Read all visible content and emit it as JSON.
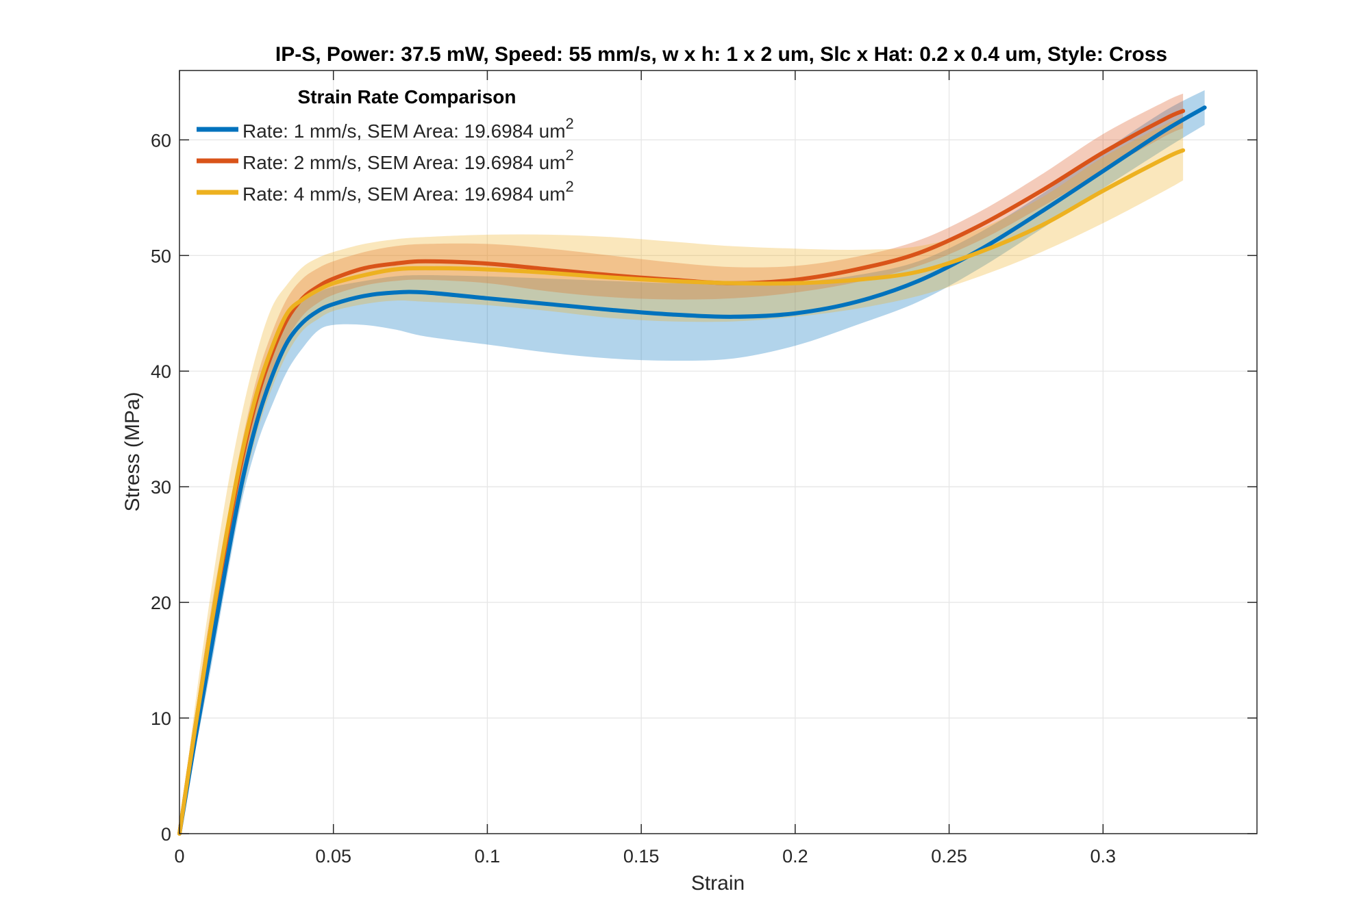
{
  "chart_data": {
    "type": "line",
    "title": "IP-S, Power: 37.5 mW, Speed: 55 mm/s, w x h: 1 x 2 um, Slc x Hat: 0.2 x 0.4 um, Style: Cross",
    "xlabel": "Strain",
    "ylabel": "Stress (MPa)",
    "xlim": [
      0,
      0.35
    ],
    "ylim": [
      0,
      66
    ],
    "xticks": [
      "0",
      "0.05",
      "0.1",
      "0.15",
      "0.2",
      "0.25",
      "0.3"
    ],
    "xtick_values": [
      0,
      0.05,
      0.1,
      0.15,
      0.2,
      0.25,
      0.3
    ],
    "yticks": [
      "0",
      "10",
      "20",
      "30",
      "40",
      "50",
      "60"
    ],
    "ytick_values": [
      0,
      10,
      20,
      30,
      40,
      50,
      60
    ],
    "grid": true,
    "legend_title": "Strain Rate Comparison",
    "legend_position": "top-left",
    "series": [
      {
        "name": "Rate: 1 mm/s, SEM Area: 19.6984 um",
        "name_sup": "2",
        "color": "#0072BD",
        "x": [
          0,
          0.005,
          0.01,
          0.015,
          0.02,
          0.025,
          0.03,
          0.035,
          0.04,
          0.045,
          0.05,
          0.06,
          0.07,
          0.08,
          0.1,
          0.12,
          0.14,
          0.16,
          0.18,
          0.2,
          0.22,
          0.24,
          0.26,
          0.28,
          0.3,
          0.32,
          0.333
        ],
        "y": [
          0,
          8.0,
          15.5,
          23.0,
          30.0,
          35.5,
          39.5,
          42.5,
          44.2,
          45.2,
          45.8,
          46.5,
          46.8,
          46.8,
          46.3,
          45.8,
          45.3,
          44.9,
          44.7,
          45.0,
          46.0,
          47.8,
          50.5,
          53.8,
          57.3,
          60.8,
          62.8
        ],
        "upper": [
          0,
          9.0,
          17.0,
          24.5,
          31.5,
          37.5,
          41.5,
          44.3,
          46.0,
          46.8,
          47.3,
          47.8,
          48.2,
          48.3,
          48.2,
          48.0,
          47.8,
          47.6,
          47.6,
          47.7,
          48.3,
          49.5,
          52.0,
          55.3,
          59.0,
          62.5,
          64.3
        ],
        "lower": [
          0,
          7.0,
          14.0,
          21.5,
          28.5,
          33.5,
          37.0,
          40.0,
          42.0,
          43.5,
          44.0,
          44.0,
          43.6,
          43.0,
          42.3,
          41.6,
          41.1,
          40.9,
          41.1,
          42.2,
          44.0,
          46.0,
          48.9,
          52.3,
          55.8,
          59.2,
          61.3
        ]
      },
      {
        "name": "Rate: 2 mm/s, SEM Area: 19.6984 um",
        "name_sup": "2",
        "color": "#D95319",
        "x": [
          0,
          0.005,
          0.01,
          0.015,
          0.02,
          0.025,
          0.03,
          0.035,
          0.04,
          0.045,
          0.05,
          0.06,
          0.07,
          0.08,
          0.1,
          0.12,
          0.14,
          0.16,
          0.18,
          0.2,
          0.22,
          0.24,
          0.26,
          0.28,
          0.3,
          0.32,
          0.326
        ],
        "y": [
          0,
          9.0,
          17.5,
          25.0,
          32.0,
          37.5,
          41.5,
          44.5,
          46.3,
          47.3,
          48.0,
          48.9,
          49.3,
          49.5,
          49.3,
          48.8,
          48.3,
          47.9,
          47.6,
          47.9,
          48.8,
          50.2,
          52.6,
          55.6,
          58.9,
          61.8,
          62.5
        ],
        "upper": [
          0,
          10.0,
          19.0,
          26.5,
          33.5,
          39.3,
          43.3,
          46.3,
          48.0,
          48.9,
          49.5,
          50.3,
          50.8,
          51.0,
          51.0,
          50.6,
          50.0,
          49.4,
          49.0,
          49.1,
          49.9,
          51.3,
          53.8,
          57.0,
          60.5,
          63.3,
          64.0
        ],
        "lower": [
          0,
          8.0,
          16.0,
          23.5,
          30.5,
          35.8,
          39.8,
          42.8,
          44.8,
          45.9,
          46.6,
          47.4,
          47.8,
          47.9,
          47.6,
          46.9,
          46.4,
          46.2,
          46.3,
          46.8,
          47.7,
          49.1,
          51.3,
          54.2,
          57.3,
          60.3,
          61.0
        ]
      },
      {
        "name": "Rate: 4 mm/s, SEM Area: 19.6984 um",
        "name_sup": "2",
        "color": "#EDB120",
        "x": [
          0,
          0.005,
          0.01,
          0.015,
          0.02,
          0.025,
          0.03,
          0.035,
          0.04,
          0.045,
          0.05,
          0.06,
          0.07,
          0.08,
          0.1,
          0.12,
          0.14,
          0.16,
          0.18,
          0.2,
          0.22,
          0.24,
          0.26,
          0.28,
          0.3,
          0.32,
          0.326
        ],
        "y": [
          0,
          9.0,
          17.5,
          25.5,
          32.5,
          38.0,
          42.0,
          45.0,
          46.2,
          47.0,
          47.6,
          48.3,
          48.8,
          48.9,
          48.8,
          48.5,
          48.1,
          47.8,
          47.6,
          47.6,
          47.9,
          48.6,
          50.3,
          52.6,
          55.6,
          58.4,
          59.1
        ],
        "upper": [
          0,
          11.0,
          20.5,
          29.0,
          36.0,
          41.5,
          45.5,
          47.5,
          49.0,
          49.8,
          50.3,
          51.0,
          51.4,
          51.6,
          51.8,
          51.8,
          51.6,
          51.2,
          50.8,
          50.6,
          50.5,
          50.8,
          52.3,
          55.0,
          58.5,
          61.3,
          62.0
        ],
        "lower": [
          0,
          7.0,
          14.5,
          22.0,
          29.0,
          34.5,
          38.5,
          41.5,
          43.5,
          44.5,
          45.2,
          45.8,
          46.1,
          46.0,
          45.7,
          45.2,
          44.6,
          44.3,
          44.3,
          44.7,
          45.4,
          46.5,
          48.2,
          50.3,
          52.8,
          55.6,
          56.5
        ]
      }
    ]
  }
}
